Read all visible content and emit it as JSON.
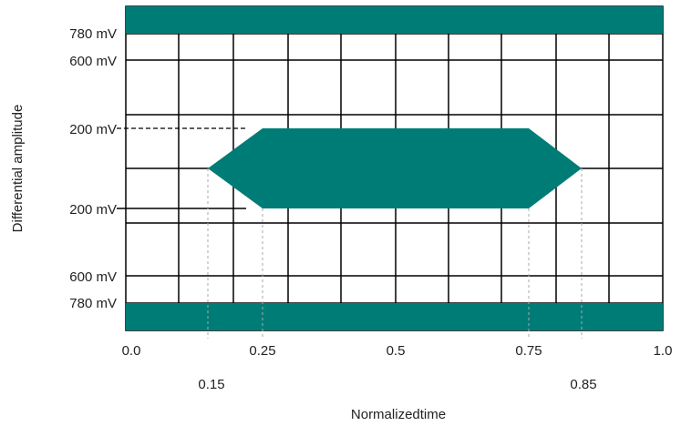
{
  "figure": {
    "colors": {
      "mask": "#007c77",
      "grid": "#000000",
      "guide": "#aaaaaa",
      "text": "#222222"
    },
    "y_axis_label": "Differential amplitude",
    "x_axis_label": "Normalizedtime",
    "amplitude_labels": {
      "top_outer": "780 mV",
      "top_inner": "600 mV",
      "eye_top": "200 mV",
      "eye_bottom": "200 mV",
      "bottom_inner": "600 mV",
      "bottom_outer": "780 mV"
    },
    "time_labels": {
      "t0": "0.0",
      "t025": "0.25",
      "t05": "0.5",
      "t075": "0.75",
      "t1": "1.0",
      "t015": "0.15",
      "t085": "0.85"
    },
    "eye_mask": {
      "time_points": [
        0.15,
        0.25,
        0.75,
        0.85
      ],
      "amplitude_mV": 200,
      "violation_limit_mV": 780
    }
  }
}
